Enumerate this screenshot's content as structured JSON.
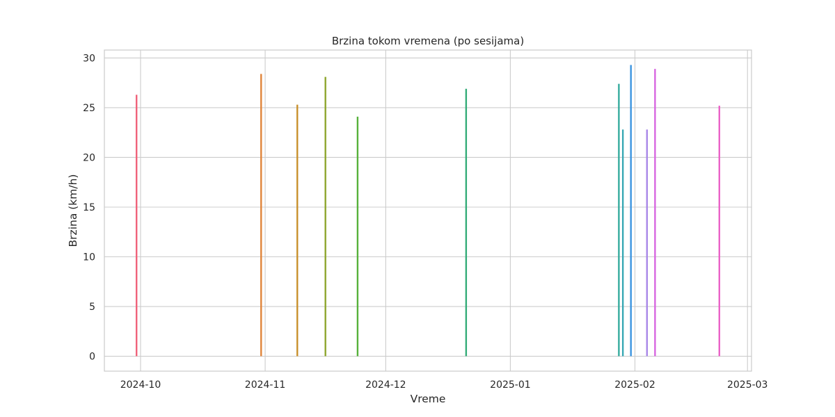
{
  "chart_data": {
    "type": "line",
    "title": "Brzina tokom vremena (po sesijama)",
    "xlabel": "Vreme",
    "ylabel": "Brzina (km/h)",
    "x_axis_type": "date",
    "xlim": [
      "2024-09-22",
      "2025-03-02"
    ],
    "ylim": [
      -1.5,
      30.8
    ],
    "x_ticks": [
      "2024-10-01",
      "2024-11-01",
      "2024-12-01",
      "2025-01-01",
      "2025-02-01",
      "2025-03-01"
    ],
    "x_tick_labels": [
      "2024-10",
      "2024-11",
      "2024-12",
      "2025-01",
      "2025-02",
      "2025-03"
    ],
    "y_ticks": [
      0,
      5,
      10,
      15,
      20,
      25,
      30
    ],
    "grid": true,
    "legend": "none",
    "series": [
      {
        "date": "2024-09-30",
        "color": "#f0627a",
        "min": 0,
        "max": 26.3
      },
      {
        "date": "2024-10-31",
        "color": "#e0843a",
        "min": 0,
        "max": 28.4
      },
      {
        "date": "2024-11-09",
        "color": "#c8902c",
        "min": 0,
        "max": 25.3
      },
      {
        "date": "2024-11-16",
        "color": "#8ea62e",
        "min": 0,
        "max": 28.1
      },
      {
        "date": "2024-11-24",
        "color": "#55b13a",
        "min": 0,
        "max": 24.1
      },
      {
        "date": "2024-12-21",
        "color": "#33ac78",
        "min": 0,
        "max": 26.9
      },
      {
        "date": "2025-01-28",
        "color": "#35ab9e",
        "min": 0,
        "max": 27.4
      },
      {
        "date": "2025-01-29",
        "color": "#38a8b4",
        "min": 0,
        "max": 22.8
      },
      {
        "date": "2025-01-31",
        "color": "#3b94e0",
        "min": 0,
        "max": 29.3
      },
      {
        "date": "2025-02-04",
        "color": "#a886e8",
        "min": 0,
        "max": 22.8
      },
      {
        "date": "2025-02-06",
        "color": "#d766e0",
        "min": 0,
        "max": 28.9
      },
      {
        "date": "2025-02-22",
        "color": "#ea62c7",
        "min": 0,
        "max": 25.2
      }
    ]
  }
}
